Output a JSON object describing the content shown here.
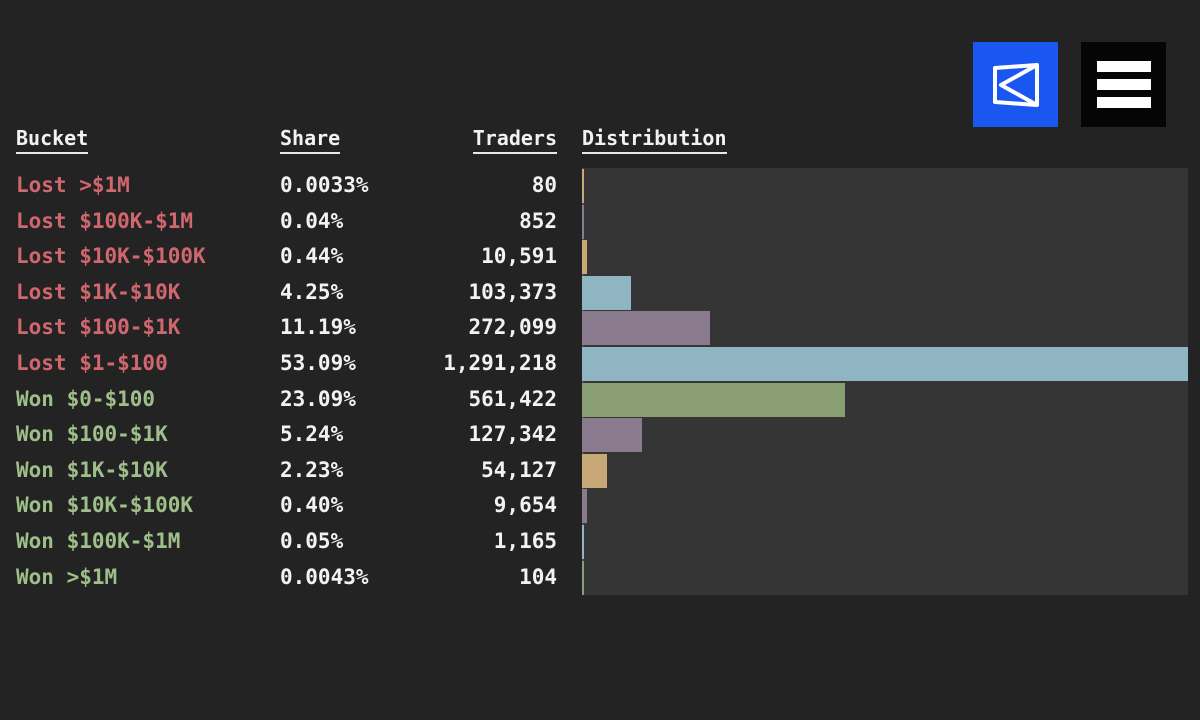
{
  "header": {
    "bucket": "Bucket",
    "share": "Share",
    "traders": "Traders",
    "distribution": "Distribution"
  },
  "icons": {
    "logo": "logo-icon",
    "menu": "hamburger-menu-icon"
  },
  "colors": {
    "lost_text": "#d0676e",
    "won_text": "#9fbf8a",
    "logo_bg": "#1a57f0"
  },
  "chart_data": {
    "type": "bar",
    "orientation": "horizontal",
    "categories": [
      "Lost >$1M",
      "Lost $100K-$1M",
      "Lost $10K-$100K",
      "Lost $1K-$10K",
      "Lost $100-$1K",
      "Lost $1-$100",
      "Won $0-$100",
      "Won $100-$1K",
      "Won $1K-$10K",
      "Won $10K-$100K",
      "Won $100K-$1M",
      "Won >$1M"
    ],
    "outcome": [
      "lost",
      "lost",
      "lost",
      "lost",
      "lost",
      "lost",
      "won",
      "won",
      "won",
      "won",
      "won",
      "won"
    ],
    "share_labels": [
      "0.0033%",
      "0.04%",
      "0.44%",
      "4.25%",
      "11.19%",
      "53.09%",
      "23.09%",
      "5.24%",
      "2.23%",
      "0.40%",
      "0.05%",
      "0.0043%"
    ],
    "trader_labels": [
      "80",
      "852",
      "10,591",
      "103,373",
      "272,099",
      "1,291,218",
      "561,422",
      "127,342",
      "54,127",
      "9,654",
      "1,165",
      "104"
    ],
    "values": [
      80,
      852,
      10591,
      103373,
      272099,
      1291218,
      561422,
      127342,
      54127,
      9654,
      1165,
      104
    ],
    "bar_colors": [
      "#c9a878",
      "#8a7a8e",
      "#c9a878",
      "#8fb5c2",
      "#8a7a8e",
      "#8fb5c2",
      "#8a9e74",
      "#8a7a8e",
      "#c9a878",
      "#8a7a8e",
      "#8fb5c2",
      "#8a9e74"
    ],
    "xlim": [
      0,
      1291218
    ],
    "grid": false,
    "legend": "none"
  }
}
